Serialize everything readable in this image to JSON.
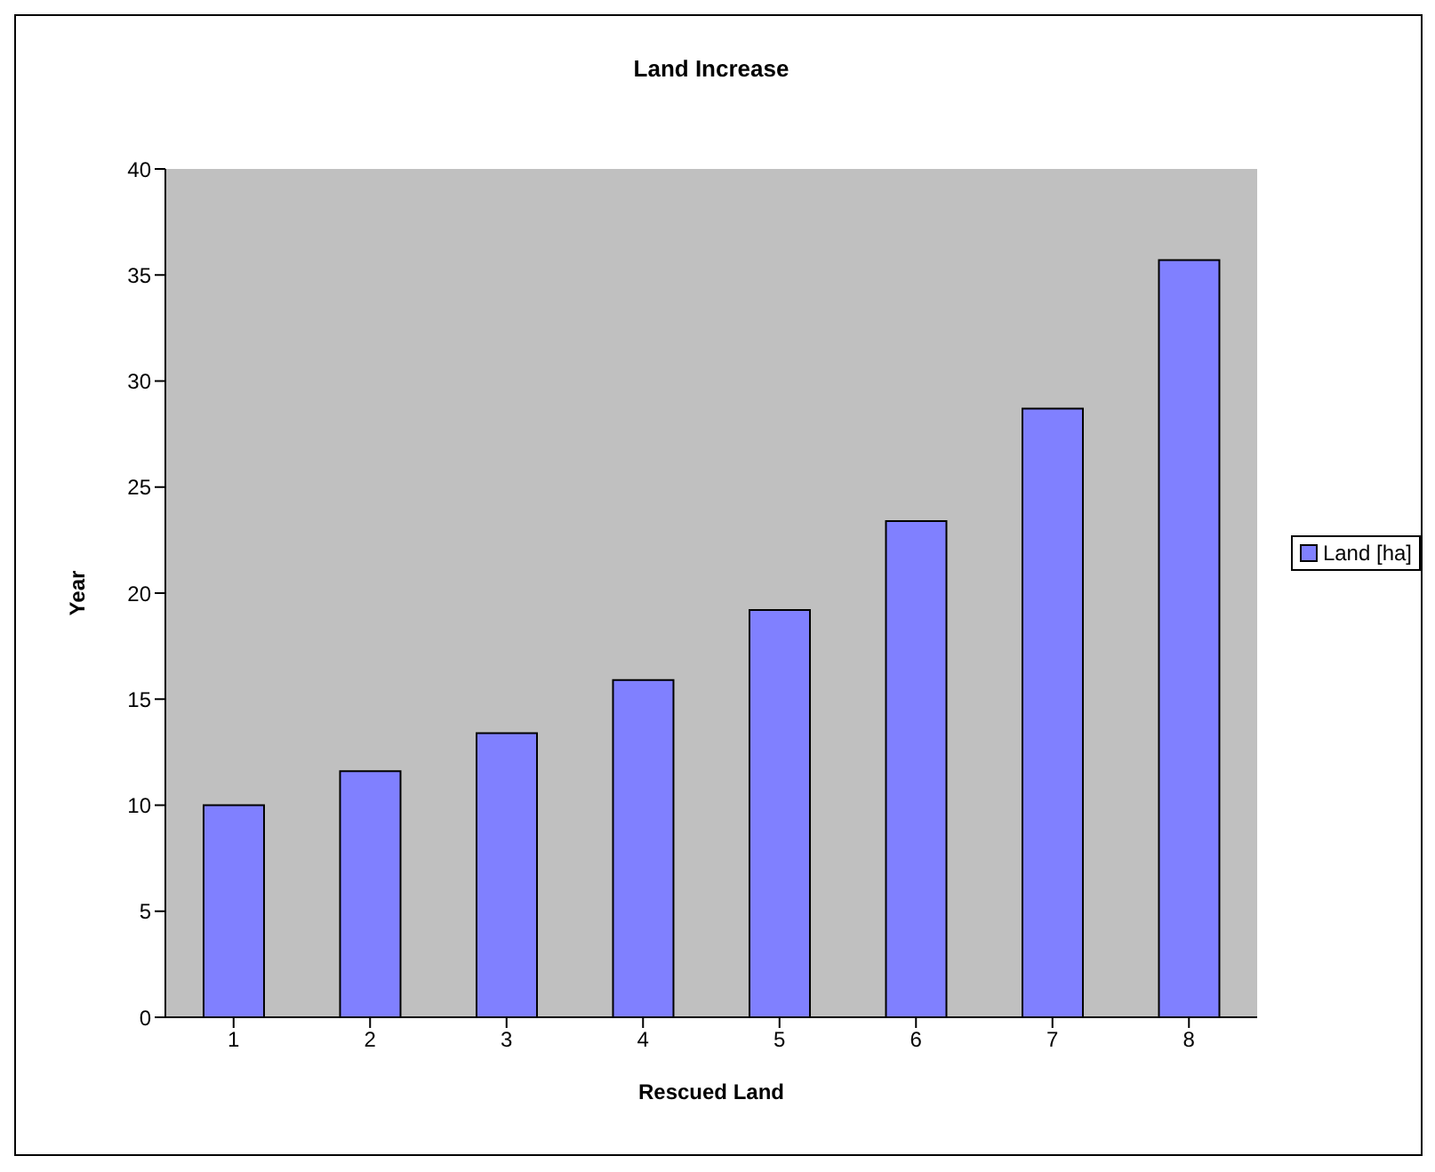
{
  "chart_data": {
    "type": "bar",
    "title": "Land Increase",
    "xlabel": "Rescued Land",
    "ylabel": "Year",
    "categories": [
      "1",
      "2",
      "3",
      "4",
      "5",
      "6",
      "7",
      "8"
    ],
    "series": [
      {
        "name": "Land [ha]",
        "color": "#8080ff",
        "values": [
          10,
          11.6,
          13.4,
          15.9,
          19.2,
          23.4,
          28.7,
          35.7
        ]
      }
    ],
    "ylim": [
      0,
      40
    ],
    "yticks": [
      0,
      5,
      10,
      15,
      20,
      25,
      30,
      35,
      40
    ],
    "grid": false,
    "legend": "right"
  }
}
